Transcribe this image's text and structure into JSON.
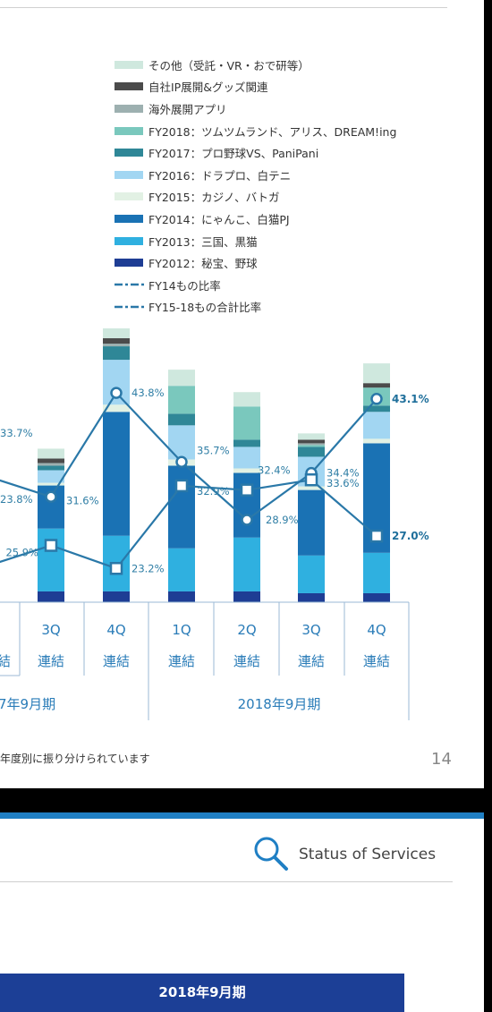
{
  "slide_top": {
    "page_number": "14",
    "footnote": "年度別に振り分けられています"
  },
  "slide_bottom": {
    "section_title": "Status of Services",
    "table_header": "2018年9月期"
  },
  "colors": {
    "other": "#cfe8de",
    "ip": "#4b4b4b",
    "overseas": "#9db0b0",
    "fy2018": "#7ac8bd",
    "fy2017": "#2f8797",
    "fy2016": "#a2d6f2",
    "fy2015": "#e2f1e4",
    "fy2014": "#1a72b4",
    "fy2013": "#2fb0e0",
    "fy2012": "#1e3d94",
    "line": "#2a78a8"
  },
  "chart_data": {
    "type": "bar",
    "stacked": true,
    "categories": [
      "3Q 連結",
      "4Q 連結",
      "1Q 連結",
      "2Q 連結",
      "3Q 連結",
      "4Q 連結"
    ],
    "tick_top": [
      "3Q",
      "4Q",
      "1Q",
      "2Q",
      "3Q",
      "4Q"
    ],
    "tick_bottom": [
      "連結",
      "連結",
      "連結",
      "連結",
      "連結",
      "連結"
    ],
    "left_cut_tick_bottom": "結",
    "groups": [
      {
        "label": "7年9月期",
        "categories": [
          "3Q 連結",
          "4Q 連結"
        ]
      },
      {
        "label": "2018年9月期",
        "categories": [
          "1Q 連結",
          "2Q 連結",
          "3Q 連結",
          "4Q 連結"
        ]
      }
    ],
    "ylim": [
      0,
      300
    ],
    "series": [
      {
        "name": "FY2012：秘宝、野球",
        "color_key": "fy2012",
        "values": [
          12,
          12,
          12,
          12,
          10,
          10
        ]
      },
      {
        "name": "FY2013：三国、黒猫",
        "color_key": "fy2013",
        "values": [
          70,
          62,
          48,
          60,
          42,
          45
        ]
      },
      {
        "name": "FY2014：にゃんこ、白猫PJ",
        "color_key": "fy2014",
        "values": [
          48,
          138,
          92,
          72,
          73,
          122
        ]
      },
      {
        "name": "FY2015：カジノ、バトガ",
        "color_key": "fy2015",
        "values": [
          3,
          8,
          7,
          5,
          4,
          5
        ]
      },
      {
        "name": "FY2016：ドラプロ、白テニ",
        "color_key": "fy2016",
        "values": [
          14,
          50,
          38,
          24,
          33,
          30
        ]
      },
      {
        "name": "FY2017：プロ野球VS、PaniPani",
        "color_key": "fy2017",
        "values": [
          5,
          15,
          13,
          8,
          11,
          7
        ]
      },
      {
        "name": "FY2018：ツムツムランド、アリス、DREAM!ing",
        "color_key": "fy2018",
        "values": [
          0,
          0,
          31,
          37,
          2,
          20
        ]
      },
      {
        "name": "海外展開アプリ",
        "color_key": "overseas",
        "values": [
          3,
          3,
          0,
          0,
          2,
          0
        ]
      },
      {
        "name": "自社IP展開&グッズ関連",
        "color_key": "ip",
        "values": [
          5,
          6,
          0,
          0,
          4,
          5
        ]
      },
      {
        "name": "その他（受託・VR・おで研等）",
        "color_key": "other",
        "values": [
          11,
          11,
          18,
          16,
          7,
          22
        ]
      }
    ],
    "ratio_series": [
      {
        "name": "FY14もの比率",
        "marker": "circle",
        "values": [
          31.6,
          43.8,
          35.7,
          28.9,
          34.4,
          43.1
        ],
        "labels": [
          "31.6%",
          "43.8%",
          "35.7%",
          "28.9%",
          "34.4%",
          "43.1%"
        ],
        "left_cut_label": "33.7%"
      },
      {
        "name": "FY15-18もの合計比率",
        "marker": "square",
        "values": [
          25.9,
          23.2,
          32.9,
          32.4,
          33.6,
          27.0
        ],
        "labels": [
          "25.9%",
          "23.2%",
          "32.9%",
          "32.4%",
          "33.6%",
          "27.0%"
        ],
        "left_cut_label": "23.8%"
      }
    ],
    "legend_order": [
      {
        "name": "その他（受託・VR・おで研等）",
        "color_key": "other",
        "kind": "swatch"
      },
      {
        "name": "自社IP展開&グッズ関連",
        "color_key": "ip",
        "kind": "swatch"
      },
      {
        "name": "海外展開アプリ",
        "color_key": "overseas",
        "kind": "swatch"
      },
      {
        "name": "FY2018：ツムツムランド、アリス、DREAM!ing",
        "color_key": "fy2018",
        "kind": "swatch"
      },
      {
        "name": "FY2017：プロ野球VS、PaniPani",
        "color_key": "fy2017",
        "kind": "swatch"
      },
      {
        "name": "FY2016：ドラプロ、白テニ",
        "color_key": "fy2016",
        "kind": "swatch"
      },
      {
        "name": "FY2015：カジノ、バトガ",
        "color_key": "fy2015",
        "kind": "swatch"
      },
      {
        "name": "FY2014：にゃんこ、白猫PJ",
        "color_key": "fy2014",
        "kind": "swatch"
      },
      {
        "name": "FY2013：三国、黒猫",
        "color_key": "fy2013",
        "kind": "swatch"
      },
      {
        "name": "FY2012：秘宝、野球",
        "color_key": "fy2012",
        "kind": "swatch"
      },
      {
        "name": "FY14もの比率",
        "color_key": "line",
        "kind": "line"
      },
      {
        "name": "FY15-18もの合計比率",
        "color_key": "line",
        "kind": "line"
      }
    ],
    "legend_placement": "top-right",
    "grid": false
  }
}
